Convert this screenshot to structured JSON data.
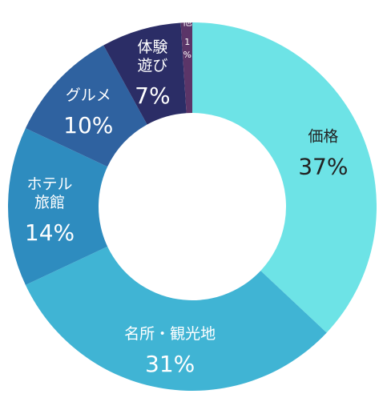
{
  "chart_data": {
    "type": "donut",
    "categories": [
      "価格",
      "名所・観光地",
      "ホテル\n旅館",
      "グルメ",
      "体験\n遊び",
      "他"
    ],
    "values": [
      37,
      31,
      14,
      10,
      7,
      1
    ],
    "value_labels": [
      "37%",
      "31%",
      "14%",
      "10%",
      "7%",
      "1%"
    ],
    "colors": [
      "#6de3e6",
      "#40b4d4",
      "#2e8cbf",
      "#2f62a0",
      "#2b2d66",
      "#5b3568"
    ]
  }
}
